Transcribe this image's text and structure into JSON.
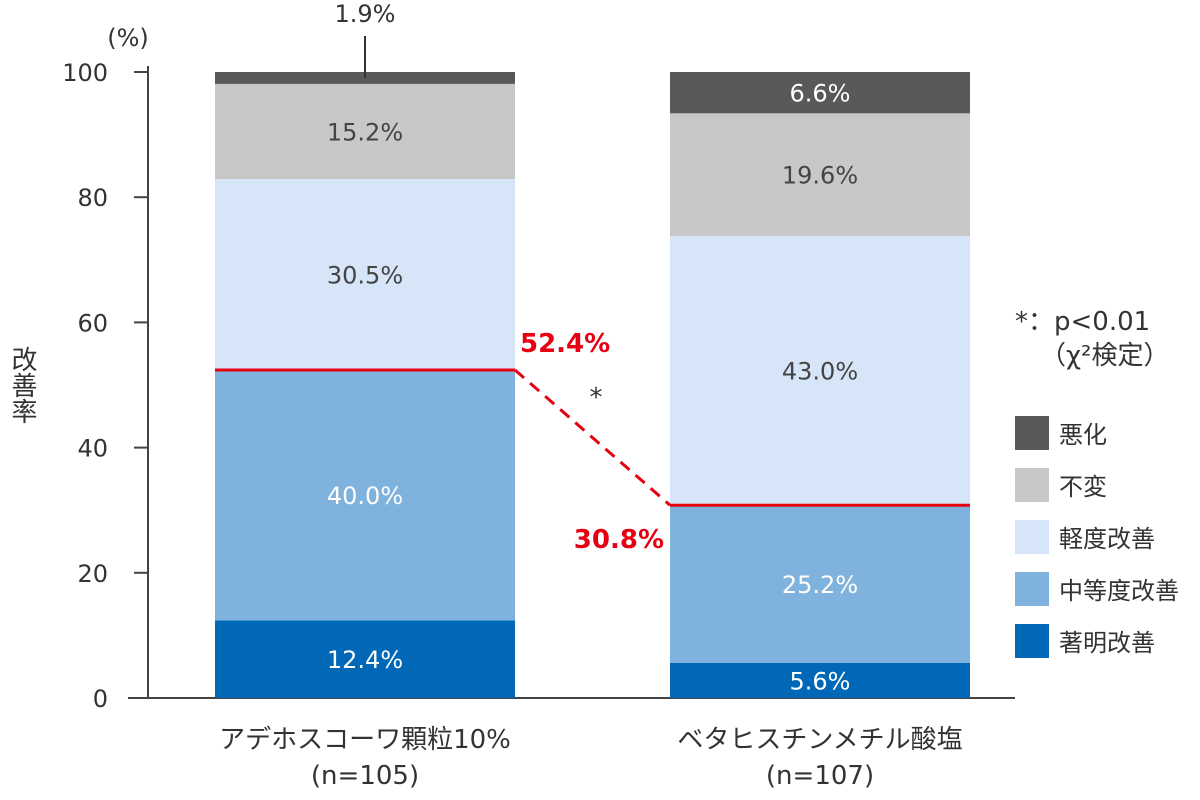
{
  "chart_data": {
    "type": "bar",
    "stacked": true,
    "unit_label": "(%)",
    "ylabel": "改善率",
    "ylim": [
      0,
      100
    ],
    "yticks": [
      0,
      20,
      40,
      60,
      80,
      100
    ],
    "categories": [
      {
        "name": "アデホスコーワ顆粒10%",
        "n": "(n=105)"
      },
      {
        "name": "ベタヒスチンメチル酸塩",
        "n": "(n=107)"
      }
    ],
    "series": [
      {
        "name": "著明改善",
        "color": "#0068b7",
        "text_color": "#ffffff",
        "values": [
          12.4,
          5.6
        ],
        "labels": [
          "12.4%",
          "5.6%"
        ]
      },
      {
        "name": "中等度改善",
        "color": "#7fb2dc",
        "text_color": "#ffffff",
        "values": [
          40.0,
          25.2
        ],
        "labels": [
          "40.0%",
          "25.2%"
        ]
      },
      {
        "name": "軽度改善",
        "color": "#d6e6f8",
        "text_color": "#444444",
        "values": [
          30.5,
          43.0
        ],
        "labels": [
          "30.5%",
          "43.0%"
        ]
      },
      {
        "name": "不変",
        "color": "#c8c8c8",
        "text_color": "#444444",
        "values": [
          15.2,
          19.6
        ],
        "labels": [
          "15.2%",
          "19.6%"
        ]
      },
      {
        "name": "悪化",
        "color": "#595959",
        "text_color": "#ffffff",
        "values": [
          1.9,
          6.6
        ],
        "labels": [
          "1.9%",
          "6.6%"
        ]
      }
    ],
    "improvement_line": {
      "values": [
        52.4,
        30.8
      ],
      "labels": [
        "52.4%",
        "30.8%"
      ],
      "color": "#e60012",
      "significance_mark": "*"
    },
    "significance_note": {
      "line1": "*：p<0.01",
      "line2": "（χ²検定）"
    },
    "legend_order": [
      "悪化",
      "不変",
      "軽度改善",
      "中等度改善",
      "著明改善"
    ],
    "legend_position": "right"
  }
}
